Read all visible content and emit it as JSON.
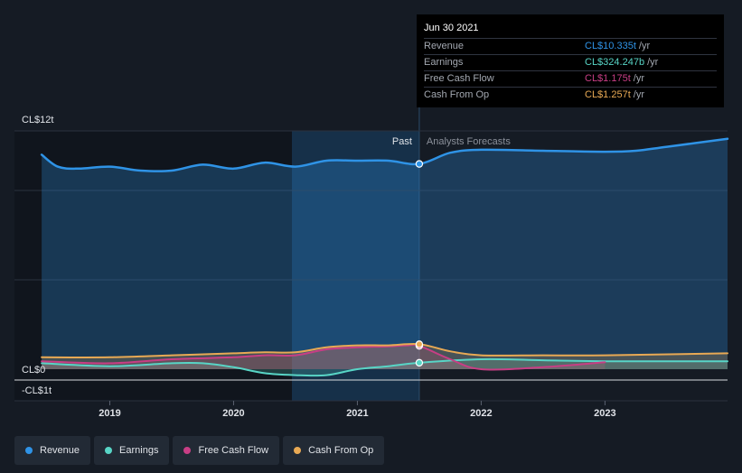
{
  "chart_data": {
    "type": "line",
    "title": "",
    "xlabel": "",
    "ylabel": "",
    "x_ticks": [
      "2019",
      "2020",
      "2021",
      "2022",
      "2023"
    ],
    "x_tick_values": [
      2019.0,
      2020.0,
      2021.0,
      2022.0,
      2023.0
    ],
    "xlim": [
      2018.23,
      2023.99
    ],
    "ylim": [
      -1.0,
      12.0
    ],
    "y_ticks": [
      {
        "label": "CL$12t",
        "value": 12
      },
      {
        "label": "CL$0",
        "value": 0
      },
      {
        "label": "-CL$1t",
        "value": -1
      }
    ],
    "divider_x": 2021.5,
    "past_label": "Past",
    "forecast_label": "Analysts Forecasts",
    "series": [
      {
        "name": "Revenue",
        "color": "#2f93e6",
        "x": [
          2018.45,
          2018.58,
          2018.75,
          2019.0,
          2019.25,
          2019.5,
          2019.75,
          2020.0,
          2020.25,
          2020.5,
          2020.75,
          2021.0,
          2021.25,
          2021.5,
          2021.75,
          2022.0,
          2022.5,
          2023.0,
          2023.25,
          2023.5,
          2023.99
        ],
        "values": [
          10.8,
          10.2,
          10.1,
          10.2,
          10.0,
          10.0,
          10.3,
          10.1,
          10.4,
          10.2,
          10.5,
          10.5,
          10.5,
          10.335,
          10.9,
          11.05,
          11.0,
          10.95,
          11.0,
          11.2,
          11.6
        ]
      },
      {
        "name": "Earnings",
        "color": "#58d5c6",
        "x": [
          2018.45,
          2019.0,
          2019.5,
          2019.75,
          2020.0,
          2020.25,
          2020.5,
          2020.75,
          2021.0,
          2021.25,
          2021.5,
          2022.0,
          2022.5,
          2023.0,
          2023.99
        ],
        "values": [
          0.3,
          0.15,
          0.3,
          0.3,
          0.1,
          -0.2,
          -0.3,
          -0.3,
          0.0,
          0.15,
          0.324,
          0.5,
          0.45,
          0.4,
          0.4
        ]
      },
      {
        "name": "Free Cash Flow",
        "color": "#c83e85",
        "x": [
          2018.45,
          2019.0,
          2019.5,
          2020.0,
          2020.25,
          2020.5,
          2020.75,
          2021.0,
          2021.25,
          2021.4,
          2021.5,
          2021.75,
          2022.0,
          2022.5,
          2023.0
        ],
        "values": [
          0.4,
          0.3,
          0.5,
          0.6,
          0.7,
          0.7,
          1.0,
          1.1,
          1.15,
          1.2,
          1.175,
          0.5,
          0.0,
          0.1,
          0.35
        ]
      },
      {
        "name": "Cash From Op",
        "color": "#e8a954",
        "x": [
          2018.45,
          2019.0,
          2019.5,
          2020.0,
          2020.25,
          2020.5,
          2020.75,
          2021.0,
          2021.25,
          2021.5,
          2021.75,
          2022.0,
          2022.5,
          2023.0,
          2023.99
        ],
        "values": [
          0.6,
          0.6,
          0.7,
          0.8,
          0.85,
          0.85,
          1.1,
          1.2,
          1.2,
          1.257,
          0.9,
          0.7,
          0.7,
          0.7,
          0.8
        ]
      }
    ],
    "highlight_points": [
      {
        "series": "Revenue",
        "x": 2021.5,
        "value": 10.335
      },
      {
        "series": "Earnings",
        "x": 2021.5,
        "value": 0.324
      },
      {
        "series": "Free Cash Flow",
        "x": 2021.5,
        "value": 1.175
      },
      {
        "series": "Cash From Op",
        "x": 2021.5,
        "value": 1.257
      }
    ],
    "legend": "bottom-left"
  },
  "tooltip": {
    "date": "Jun 30 2021",
    "rows": [
      {
        "label": "Revenue",
        "value": "CL$10.335t",
        "unit": "/yr",
        "color": "#2f93e6"
      },
      {
        "label": "Earnings",
        "value": "CL$324.247b",
        "unit": "/yr",
        "color": "#58d5c6"
      },
      {
        "label": "Free Cash Flow",
        "value": "CL$1.175t",
        "unit": "/yr",
        "color": "#c83e85"
      },
      {
        "label": "Cash From Op",
        "value": "CL$1.257t",
        "unit": "/yr",
        "color": "#e8a954"
      }
    ]
  },
  "legend": {
    "items": [
      {
        "label": "Revenue",
        "color": "#2f93e6"
      },
      {
        "label": "Earnings",
        "color": "#58d5c6"
      },
      {
        "label": "Free Cash Flow",
        "color": "#c83e85"
      },
      {
        "label": "Cash From Op",
        "color": "#e8a954"
      }
    ]
  }
}
